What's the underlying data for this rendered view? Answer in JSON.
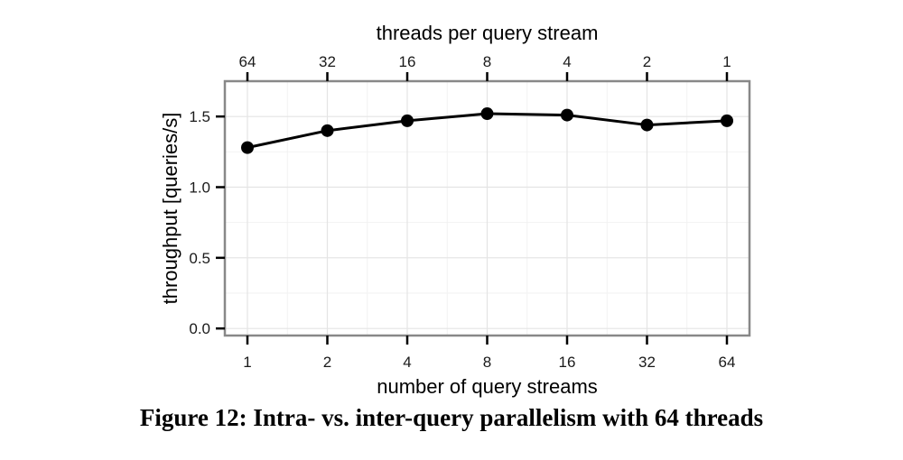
{
  "chart_data": {
    "type": "line",
    "caption": "Figure 12: Intra- vs. inter-query parallelism with 64 threads",
    "xlabel": "number of query streams",
    "x2label": "threads per query stream",
    "ylabel": "throughput [queries/s]",
    "categories": [
      "1",
      "2",
      "4",
      "8",
      "16",
      "32",
      "64"
    ],
    "top_categories": [
      "64",
      "32",
      "16",
      "8",
      "4",
      "2",
      "1"
    ],
    "x_scale": "log2",
    "ylim": [
      -0.05,
      1.75
    ],
    "yticks": [
      0.0,
      0.5,
      1.0,
      1.5
    ],
    "ytick_labels": [
      "0.0",
      "0.5",
      "1.0",
      "1.5"
    ],
    "grid": true,
    "legend": "none",
    "series": [
      {
        "values": [
          1.28,
          1.4,
          1.47,
          1.52,
          1.51,
          1.44,
          1.47
        ],
        "color": "#000000",
        "marker": "circle"
      }
    ],
    "colors": {
      "panel_border": "#888888",
      "grid_major": "#e4e4e4",
      "grid_minor": "#f2f2f2",
      "line": "#000000"
    }
  }
}
